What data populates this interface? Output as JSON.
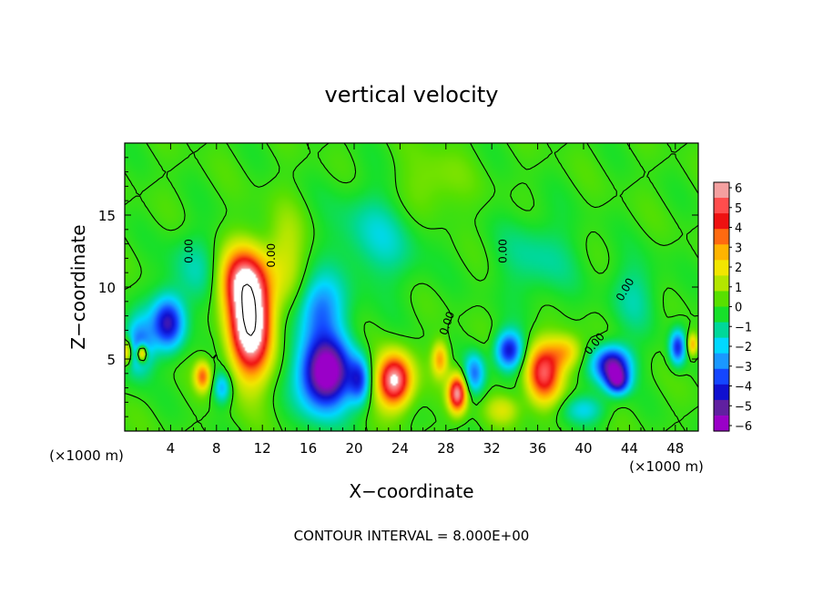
{
  "chart_data": {
    "type": "heatmap",
    "title": "vertical velocity",
    "xlabel": "X−coordinate",
    "ylabel": "Z−coordinate",
    "x_unit_left": "(×1000 m)",
    "x_unit_right": "(×1000 m)",
    "xlim": [
      0,
      50
    ],
    "ylim": [
      0,
      20
    ],
    "xticks": [
      "4",
      "8",
      "12",
      "16",
      "20",
      "24",
      "28",
      "32",
      "36",
      "40",
      "44",
      "48"
    ],
    "yticks": [
      "5",
      "10",
      "15"
    ],
    "footer": "CONTOUR INTERVAL = 8.000E+00",
    "contour_label": "0.00",
    "colorbar": {
      "min": -6,
      "max": 6,
      "labels": [
        "6",
        "5",
        "4",
        "3",
        "2",
        "1",
        "0",
        "−1",
        "−2",
        "−3",
        "−4",
        "−5",
        "−6"
      ],
      "colors": [
        "#f4a0a0",
        "#ff4d4d",
        "#ee1111",
        "#ff6a10",
        "#ffb400",
        "#f2e600",
        "#b4e600",
        "#58e000",
        "#17e02a",
        "#00d89a",
        "#00d8ff",
        "#1a98ff",
        "#1446ff",
        "#1010d0",
        "#6020a0",
        "#9a00c8"
      ]
    },
    "features": [
      {
        "x": 11,
        "z": 7.5,
        "w": 8,
        "sx": 1.8,
        "sz": 3.6
      },
      {
        "x": 10,
        "z": 10.5,
        "w": 4,
        "sx": 2.0,
        "sz": 2.2
      },
      {
        "x": 17.5,
        "z": 4,
        "w": -7,
        "sx": 2.3,
        "sz": 2.6
      },
      {
        "x": 17,
        "z": 8.5,
        "w": -3,
        "sx": 2.0,
        "sz": 2.2
      },
      {
        "x": 23.5,
        "z": 3.5,
        "w": 6.5,
        "sx": 1.5,
        "sz": 1.8
      },
      {
        "x": 29,
        "z": 2.6,
        "w": 6,
        "sx": 0.8,
        "sz": 1.3
      },
      {
        "x": 27.5,
        "z": 5,
        "w": 3,
        "sx": 0.7,
        "sz": 1.2
      },
      {
        "x": 36.5,
        "z": 4,
        "w": 5,
        "sx": 1.5,
        "sz": 2.1
      },
      {
        "x": 42.5,
        "z": 4.6,
        "w": -5.5,
        "sx": 1.6,
        "sz": 1.3
      },
      {
        "x": 43,
        "z": 3.4,
        "w": -4,
        "sx": 1.0,
        "sz": 0.9
      },
      {
        "x": 33.5,
        "z": 5.6,
        "w": -4.5,
        "sx": 1.2,
        "sz": 1.3
      },
      {
        "x": 3.8,
        "z": 7.5,
        "w": -4.5,
        "sx": 1.4,
        "sz": 1.8
      },
      {
        "x": 1.2,
        "z": 6,
        "w": -3.5,
        "sx": 1.3,
        "sz": 2.0
      },
      {
        "x": 1.5,
        "z": 5.4,
        "w": 5,
        "sx": 0.45,
        "sz": 0.6
      },
      {
        "x": 0.2,
        "z": 5.5,
        "w": 3.5,
        "sx": 0.5,
        "sz": 0.9
      },
      {
        "x": 6.8,
        "z": 3.8,
        "w": 3.5,
        "sx": 0.7,
        "sz": 1.0
      },
      {
        "x": 8.5,
        "z": 3.0,
        "w": -2.5,
        "sx": 0.8,
        "sz": 1.1
      },
      {
        "x": 20.5,
        "z": 3.5,
        "w": -3,
        "sx": 0.9,
        "sz": 1.6
      },
      {
        "x": 30.5,
        "z": 4,
        "w": -3,
        "sx": 0.9,
        "sz": 1.4
      },
      {
        "x": 38.5,
        "z": 5.5,
        "w": 2.5,
        "sx": 1.4,
        "sz": 1.2
      },
      {
        "x": 48.2,
        "z": 5.8,
        "w": -4,
        "sx": 0.7,
        "sz": 1.2
      },
      {
        "x": 49.5,
        "z": 6,
        "w": 3,
        "sx": 0.5,
        "sz": 0.8
      },
      {
        "x": 14,
        "z": 12,
        "w": 1.5,
        "sx": 1.8,
        "sz": 3.2
      },
      {
        "x": 22,
        "z": 13.5,
        "w": -1.5,
        "sx": 4.0,
        "sz": 3.5
      },
      {
        "x": 6,
        "z": 11,
        "w": -1.3,
        "sx": 2.4,
        "sz": 2.8
      },
      {
        "x": 36,
        "z": 12,
        "w": -1.2,
        "sx": 3.5,
        "sz": 3.0
      },
      {
        "x": 44.5,
        "z": 9.5,
        "w": -1.2,
        "sx": 2.2,
        "sz": 2.6
      },
      {
        "x": 26.5,
        "z": 17,
        "w": 1.0,
        "sx": 3.0,
        "sz": 2.5
      },
      {
        "x": 40,
        "z": 1.5,
        "w": -1.8,
        "sx": 2.0,
        "sz": 1.0
      },
      {
        "x": 33,
        "z": 1.5,
        "w": 1.5,
        "sx": 1.5,
        "sz": 1.0
      }
    ]
  }
}
